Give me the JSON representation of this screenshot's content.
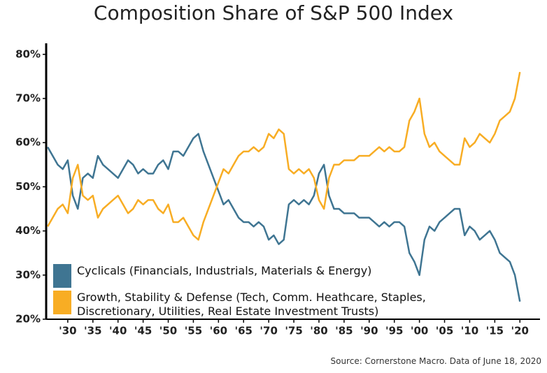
{
  "chart_data": {
    "type": "line",
    "title": "Composition Share of S&P 500 Index",
    "source": "Source: Cornerstone Macro. Data of June 18, 2020",
    "x": [
      1926,
      1927,
      1928,
      1929,
      1930,
      1931,
      1932,
      1933,
      1934,
      1935,
      1936,
      1937,
      1938,
      1939,
      1940,
      1941,
      1942,
      1943,
      1944,
      1945,
      1946,
      1947,
      1948,
      1949,
      1950,
      1951,
      1952,
      1953,
      1954,
      1955,
      1956,
      1957,
      1958,
      1959,
      1960,
      1961,
      1962,
      1963,
      1964,
      1965,
      1966,
      1967,
      1968,
      1969,
      1970,
      1971,
      1972,
      1973,
      1974,
      1975,
      1976,
      1977,
      1978,
      1979,
      1980,
      1981,
      1982,
      1983,
      1984,
      1985,
      1986,
      1987,
      1988,
      1989,
      1990,
      1991,
      1992,
      1993,
      1994,
      1995,
      1996,
      1997,
      1998,
      1999,
      2000,
      2001,
      2002,
      2003,
      2004,
      2005,
      2006,
      2007,
      2008,
      2009,
      2010,
      2011,
      2012,
      2013,
      2014,
      2015,
      2016,
      2017,
      2018,
      2019,
      2020
    ],
    "series": [
      {
        "name": "Cyclicals (Financials, Industrials, Materials & Energy)",
        "color": "#3f7592",
        "values": [
          59,
          57,
          55,
          54,
          56,
          48,
          45,
          52,
          53,
          52,
          57,
          55,
          54,
          53,
          52,
          54,
          56,
          55,
          53,
          54,
          53,
          53,
          55,
          56,
          54,
          58,
          58,
          57,
          59,
          61,
          62,
          58,
          55,
          52,
          49,
          46,
          47,
          45,
          43,
          42,
          42,
          41,
          42,
          41,
          38,
          39,
          37,
          38,
          46,
          47,
          46,
          47,
          46,
          48,
          53,
          55,
          48,
          45,
          45,
          44,
          44,
          44,
          43,
          43,
          43,
          42,
          41,
          42,
          41,
          42,
          42,
          41,
          35,
          33,
          30,
          38,
          41,
          40,
          42,
          43,
          44,
          45,
          45,
          39,
          41,
          40,
          38,
          39,
          40,
          38,
          35,
          34,
          33,
          30,
          24
        ]
      },
      {
        "name": "Growth, Stability & Defense (Tech, Comm. Heathcare, Staples, Discretionary, Utilities, Real Estate Investment Trusts)",
        "color": "#f8ad24",
        "values": [
          41,
          43,
          45,
          46,
          44,
          52,
          55,
          48,
          47,
          48,
          43,
          45,
          46,
          47,
          48,
          46,
          44,
          45,
          47,
          46,
          47,
          47,
          45,
          44,
          46,
          42,
          42,
          43,
          41,
          39,
          38,
          42,
          45,
          48,
          51,
          54,
          53,
          55,
          57,
          58,
          58,
          59,
          58,
          59,
          62,
          61,
          63,
          62,
          54,
          53,
          54,
          53,
          54,
          52,
          47,
          45,
          52,
          55,
          55,
          56,
          56,
          56,
          57,
          57,
          57,
          58,
          59,
          58,
          59,
          58,
          58,
          59,
          65,
          67,
          70,
          62,
          59,
          60,
          58,
          57,
          56,
          55,
          55,
          61,
          59,
          60,
          62,
          61,
          60,
          62,
          65,
          66,
          67,
          70,
          76
        ]
      }
    ],
    "xlim": [
      1925.7,
      2024
    ],
    "xticks": [
      {
        "value": 1930,
        "label": "'30"
      },
      {
        "value": 1935,
        "label": "'35"
      },
      {
        "value": 1940,
        "label": "'40"
      },
      {
        "value": 1945,
        "label": "'45"
      },
      {
        "value": 1950,
        "label": "'50"
      },
      {
        "value": 1955,
        "label": "'55"
      },
      {
        "value": 1960,
        "label": "'60"
      },
      {
        "value": 1965,
        "label": "'65"
      },
      {
        "value": 1970,
        "label": "'70"
      },
      {
        "value": 1975,
        "label": "'75"
      },
      {
        "value": 1980,
        "label": "'80"
      },
      {
        "value": 1985,
        "label": "'85"
      },
      {
        "value": 1990,
        "label": "'90"
      },
      {
        "value": 1995,
        "label": "'95"
      },
      {
        "value": 2000,
        "label": "'00"
      },
      {
        "value": 2005,
        "label": "'05"
      },
      {
        "value": 2010,
        "label": "'10"
      },
      {
        "value": 2015,
        "label": "'15"
      },
      {
        "value": 2020,
        "label": "'20"
      }
    ],
    "ylim": [
      20,
      82.5
    ],
    "yticks": [
      {
        "value": 20,
        "label": "20%"
      },
      {
        "value": 30,
        "label": "30%"
      },
      {
        "value": 40,
        "label": "40%"
      },
      {
        "value": 50,
        "label": "50%"
      },
      {
        "value": 60,
        "label": "60%"
      },
      {
        "value": 70,
        "label": "70%"
      },
      {
        "value": 80,
        "label": "80%"
      }
    ],
    "grid": false
  }
}
